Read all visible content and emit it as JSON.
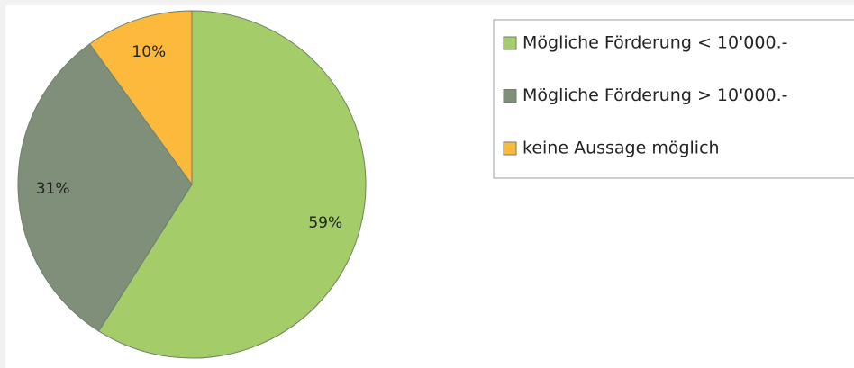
{
  "chart_data": {
    "type": "pie",
    "categories": [
      "Mögliche Förderung < 10'000.-",
      "Mögliche Förderung > 10'000.-",
      "keine Aussage möglich"
    ],
    "values": [
      59,
      31,
      10
    ],
    "value_labels": [
      "59%",
      "31%",
      "10%"
    ],
    "colors": [
      "#a4cd6a",
      "#808f7a",
      "#fdb93b"
    ],
    "legend": "right"
  }
}
